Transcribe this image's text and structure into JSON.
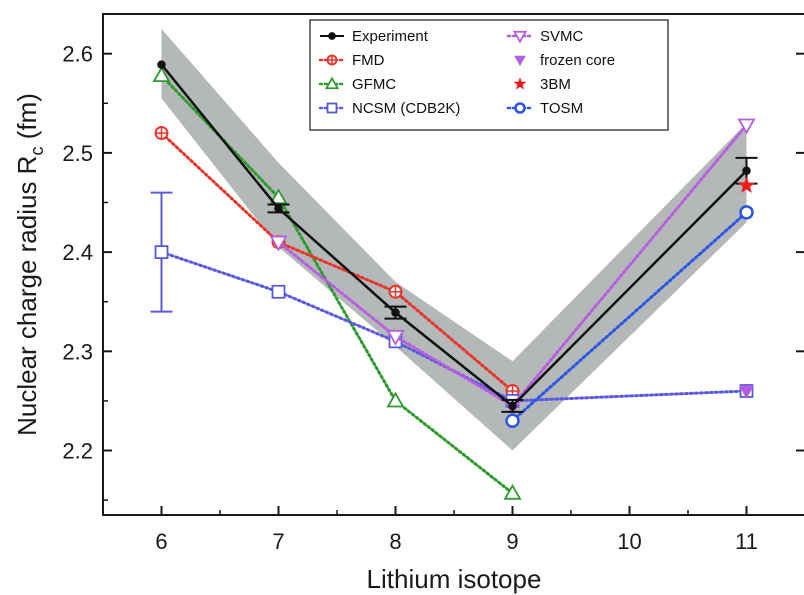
{
  "chart_data": {
    "type": "line",
    "xlabel": "Lithium isotope",
    "ylabel_main": "Nuclear charge radius  R",
    "ylabel_sub": "c",
    "ylabel_unit": " (fm)",
    "xlim": [
      5.5,
      11.5
    ],
    "ylim": [
      2.135,
      2.64
    ],
    "xticks": [
      6,
      7,
      8,
      9,
      10,
      11
    ],
    "yticks": [
      2.2,
      2.3,
      2.4,
      2.5,
      2.6
    ],
    "ytick_labels": [
      "2.2",
      "2.3",
      "2.4",
      "2.5",
      "2.6"
    ],
    "xtick_labels": [
      "6",
      "7",
      "8",
      "9",
      "10",
      "11"
    ],
    "grid": false,
    "legend_position": "top-center",
    "band": {
      "x": [
        6,
        7,
        8,
        9,
        11
      ],
      "lower": [
        2.555,
        2.405,
        2.305,
        2.2,
        2.43
      ],
      "upper": [
        2.625,
        2.49,
        2.37,
        2.29,
        2.53
      ],
      "color": "#b4b8b8"
    },
    "series": [
      {
        "name": "Experiment",
        "x": [
          6,
          7,
          8,
          9,
          11
        ],
        "y": [
          2.589,
          2.444,
          2.339,
          2.245,
          2.482
        ],
        "err": [
          0,
          0.004,
          0.006,
          0.006,
          0.013
        ],
        "color": "#111111",
        "marker": "filled-circle",
        "line": "solid"
      },
      {
        "name": "FMD",
        "x": [
          6,
          7,
          8,
          9
        ],
        "y": [
          2.52,
          2.41,
          2.36,
          2.26
        ],
        "color": "#e8352c",
        "marker": "circle-plus",
        "line": "dotted"
      },
      {
        "name": "GFMC",
        "x": [
          6,
          7,
          8,
          9
        ],
        "y": [
          2.578,
          2.455,
          2.25,
          2.157
        ],
        "color": "#2e9a2e",
        "marker": "open-triangle-up",
        "line": "dotted"
      },
      {
        "name": "NCSM (CDB2K)",
        "x": [
          6,
          7,
          8,
          9,
          11
        ],
        "y": [
          2.4,
          2.36,
          2.31,
          2.25,
          2.26
        ],
        "err": [
          0.06,
          0,
          0,
          0,
          0
        ],
        "color": "#5a5adf",
        "marker": "open-square",
        "line": "dotted"
      },
      {
        "name": "SVMC",
        "x": [
          7,
          8,
          9,
          11
        ],
        "y": [
          2.41,
          2.315,
          2.245,
          2.528
        ],
        "color": "#b55ee0",
        "marker": "open-triangle-down",
        "line": "dotted"
      },
      {
        "name": "frozen core",
        "x": [
          11
        ],
        "y": [
          2.26
        ],
        "color": "#b55ee0",
        "marker": "filled-triangle-down",
        "line": "none"
      },
      {
        "name": "3BM",
        "x": [
          11
        ],
        "y": [
          2.467
        ],
        "color": "#ee1c1c",
        "marker": "star",
        "line": "none"
      },
      {
        "name": "TOSM",
        "x": [
          9,
          11
        ],
        "y": [
          2.23,
          2.44
        ],
        "color": "#2a55e6",
        "marker": "open-circle",
        "line": "dotted"
      }
    ]
  }
}
